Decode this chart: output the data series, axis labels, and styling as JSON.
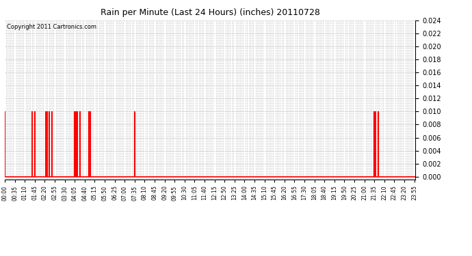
{
  "title": "Rain per Minute (Last 24 Hours) (inches) 20110728",
  "copyright_text": "Copyright 2011 Cartronics.com",
  "background_color": "#ffffff",
  "plot_bg_color": "#ffffff",
  "bar_color": "#ff0000",
  "baseline_color": "#ff0000",
  "grid_color": "#c8c8c8",
  "ylim": [
    0.0,
    0.024
  ],
  "yticks": [
    0.0,
    0.002,
    0.004,
    0.006,
    0.008,
    0.01,
    0.012,
    0.014,
    0.016,
    0.018,
    0.02,
    0.022,
    0.024
  ],
  "spike_minutes": [
    0,
    95,
    105,
    145,
    150,
    155,
    165,
    245,
    250,
    255,
    265,
    295,
    300,
    455,
    1295,
    1300,
    1310
  ],
  "spike_values": [
    0.01,
    0.01,
    0.01,
    0.01,
    0.01,
    0.01,
    0.01,
    0.01,
    0.01,
    0.01,
    0.01,
    0.01,
    0.01,
    0.01,
    0.01,
    0.01,
    0.01
  ],
  "total_minutes": 1440,
  "label_every_minutes": 35,
  "grid_every_minutes": 5
}
